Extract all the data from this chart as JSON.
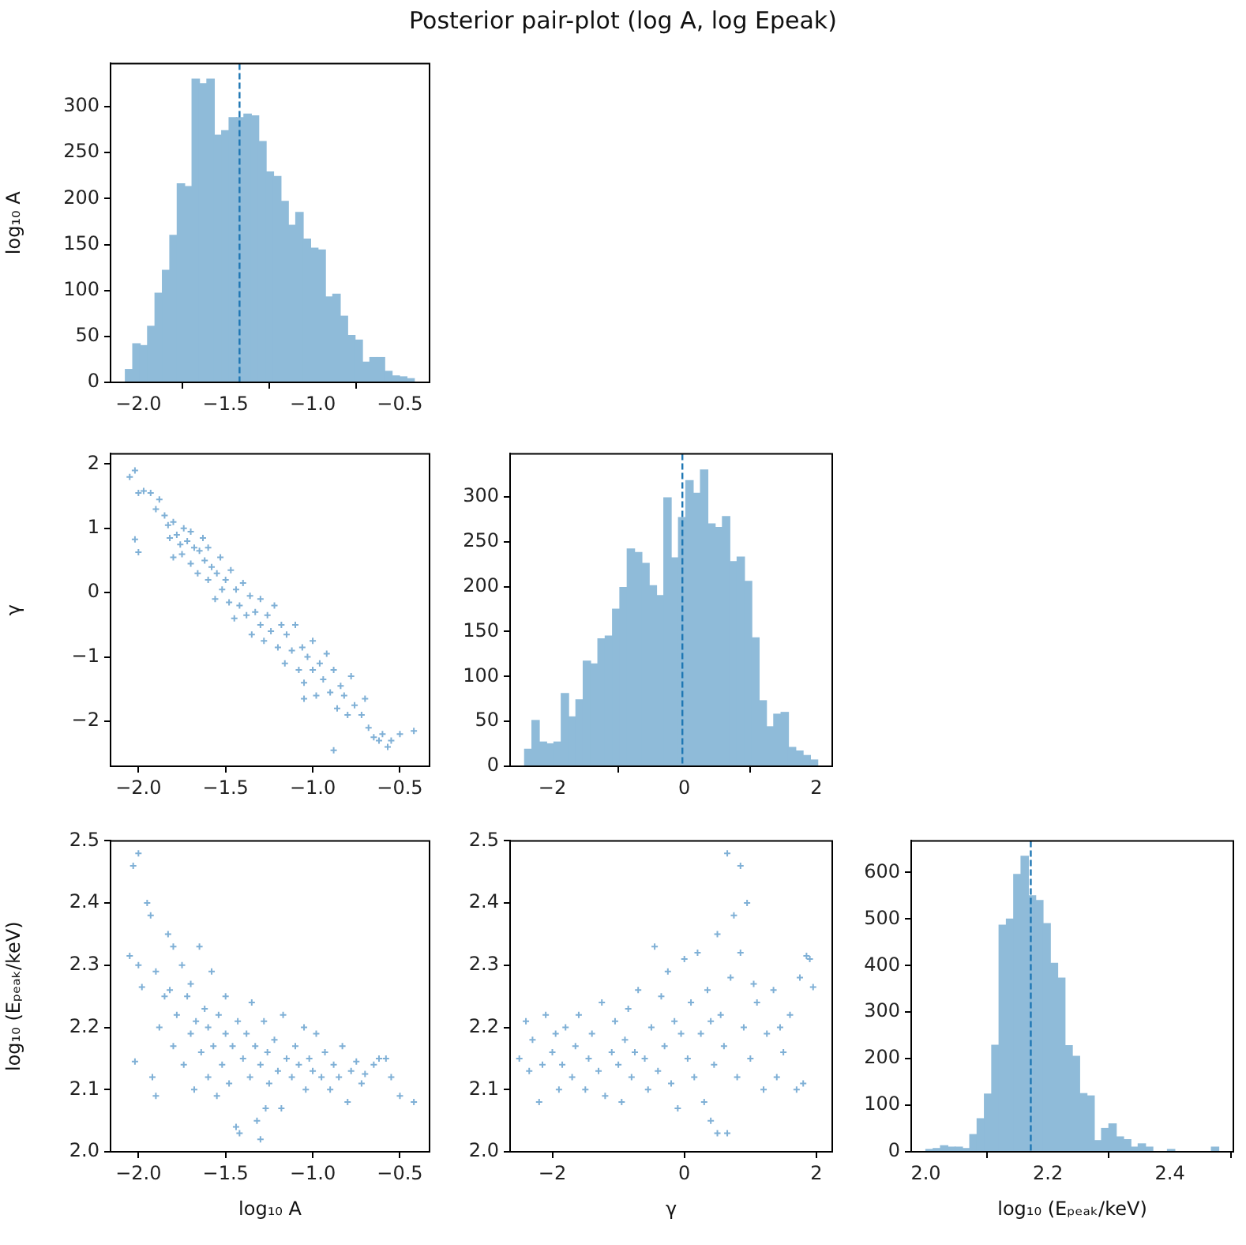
{
  "chart_data": [
    {
      "type": "histogram",
      "title": "Posterior pair-plot (log A, log Epeak)",
      "ylabel": "log₁₀ A",
      "bins": [
        -2.075,
        -2.0325,
        -1.99,
        -1.9475,
        -1.905,
        -1.8625,
        -1.82,
        -1.7775,
        -1.735,
        -1.6925,
        -1.65,
        -1.6075,
        -1.565,
        -1.5225,
        -1.48,
        -1.4375,
        -1.395,
        -1.3525,
        -1.31,
        -1.2675,
        -1.225,
        -1.1825,
        -1.14,
        -1.0975,
        -1.055,
        -1.0125,
        -0.97,
        -0.9275,
        -0.885,
        -0.8425,
        -0.8,
        -0.7575,
        -0.715,
        -0.6725,
        -0.63,
        -0.5875,
        -0.545,
        -0.5025,
        -0.46,
        -0.4175
      ],
      "values": [
        14,
        42,
        40,
        61,
        97,
        122,
        160,
        216,
        213,
        330,
        325,
        330,
        269,
        274,
        288,
        288,
        292,
        290,
        262,
        229,
        224,
        197,
        171,
        185,
        156,
        146,
        144,
        93,
        96,
        72,
        51,
        46,
        22,
        27,
        27,
        12,
        7,
        6,
        4
      ],
      "color": "#8fbbd9",
      "xlim": [
        -2.16,
        -0.33
      ],
      "xticks": [
        {
          "value": -2,
          "label": "−2.0"
        },
        {
          "value": -1.5,
          "label": "−1.5"
        },
        {
          "value": -1,
          "label": "−1.0"
        },
        {
          "value": -0.5,
          "label": "−0.5"
        }
      ],
      "ylim": [
        0,
        347
      ],
      "yticks": [
        0,
        50,
        100,
        150,
        200,
        250,
        300
      ],
      "ref_lines": [
        {
          "axis": "x",
          "value": -1.42,
          "color": "#1f77b4",
          "line_style": "dashed"
        }
      ]
    },
    {
      "type": "scatter",
      "ylabel": "γ",
      "marker": "cross",
      "color": "#7fb0d6",
      "x": [
        -2.05,
        -2.02,
        -2.0,
        -2.02,
        -2.0,
        -1.97,
        -1.93,
        -1.9,
        -1.88,
        -1.85,
        -1.83,
        -1.82,
        -1.8,
        -1.8,
        -1.78,
        -1.76,
        -1.75,
        -1.74,
        -1.72,
        -1.7,
        -1.7,
        -1.68,
        -1.66,
        -1.65,
        -1.63,
        -1.62,
        -1.6,
        -1.6,
        -1.58,
        -1.56,
        -1.55,
        -1.53,
        -1.52,
        -1.5,
        -1.48,
        -1.47,
        -1.45,
        -1.44,
        -1.42,
        -1.4,
        -1.38,
        -1.36,
        -1.35,
        -1.33,
        -1.3,
        -1.3,
        -1.28,
        -1.26,
        -1.24,
        -1.22,
        -1.2,
        -1.18,
        -1.16,
        -1.15,
        -1.12,
        -1.1,
        -1.08,
        -1.06,
        -1.05,
        -1.03,
        -1.0,
        -1.0,
        -0.98,
        -0.96,
        -0.94,
        -0.92,
        -0.9,
        -0.88,
        -0.86,
        -0.84,
        -0.82,
        -0.8,
        -0.78,
        -0.76,
        -0.72,
        -0.7,
        -0.68,
        -0.65,
        -0.62,
        -0.6,
        -0.57,
        -0.55,
        -0.5,
        -0.42,
        -0.88,
        -1.05
      ],
      "values": [
        1.8,
        1.9,
        1.55,
        0.83,
        0.63,
        1.58,
        1.55,
        1.3,
        1.45,
        1.2,
        1.05,
        0.85,
        1.1,
        0.55,
        0.9,
        0.75,
        0.6,
        1.0,
        0.8,
        0.45,
        0.95,
        0.7,
        0.3,
        0.65,
        0.85,
        0.5,
        0.2,
        0.7,
        0.4,
        -0.1,
        0.3,
        0.55,
        0.05,
        0.2,
        -0.15,
        0.35,
        -0.4,
        0.05,
        -0.2,
        0.15,
        -0.35,
        -0.05,
        -0.65,
        -0.3,
        -0.1,
        -0.5,
        -0.75,
        -0.35,
        -0.6,
        -0.2,
        -0.85,
        -0.5,
        -1.1,
        -0.65,
        -0.9,
        -0.5,
        -1.2,
        -0.85,
        -1.4,
        -1.0,
        -1.2,
        -0.75,
        -1.6,
        -1.1,
        -1.35,
        -0.95,
        -1.55,
        -1.2,
        -1.8,
        -1.45,
        -1.6,
        -1.9,
        -1.3,
        -1.75,
        -1.9,
        -1.65,
        -2.1,
        -2.25,
        -2.3,
        -2.2,
        -2.4,
        -2.3,
        -2.2,
        -2.15,
        -2.45,
        -1.65
      ],
      "xlim": [
        -2.16,
        -0.33
      ],
      "xticks": [
        {
          "value": -2,
          "label": "−2.0"
        },
        {
          "value": -1.5,
          "label": "−1.5"
        },
        {
          "value": -1,
          "label": "−1.0"
        },
        {
          "value": -0.5,
          "label": "−0.5"
        }
      ],
      "ylim": [
        -2.7,
        2.16
      ],
      "yticks": [
        {
          "value": -2,
          "label": "−2"
        },
        {
          "value": -1,
          "label": "−1"
        },
        0,
        1,
        2
      ]
    },
    {
      "type": "histogram",
      "bins": [
        -2.42,
        -2.309,
        -2.198,
        -2.087,
        -1.976,
        -1.865,
        -1.754,
        -1.643,
        -1.532,
        -1.421,
        -1.31,
        -1.199,
        -1.088,
        -0.977,
        -0.866,
        -0.755,
        -0.644,
        -0.533,
        -0.422,
        -0.311,
        -0.2,
        -0.089,
        0.022,
        0.133,
        0.244,
        0.355,
        0.466,
        0.577,
        0.688,
        0.799,
        0.91,
        1.021,
        1.132,
        1.243,
        1.354,
        1.465,
        1.576,
        1.687,
        1.798,
        1.909,
        2.02
      ],
      "values": [
        19,
        51,
        27,
        25,
        27,
        81,
        55,
        74,
        117,
        114,
        142,
        145,
        175,
        199,
        242,
        238,
        226,
        201,
        190,
        299,
        232,
        277,
        318,
        304,
        330,
        270,
        266,
        278,
        228,
        233,
        206,
        143,
        73,
        44,
        58,
        60,
        21,
        17,
        12,
        7
      ],
      "color": "#8fbbd9",
      "xlim": [
        -2.64,
        2.24
      ],
      "xticks": [
        {
          "value": -2,
          "label": "−2"
        },
        0,
        2
      ],
      "ylim": [
        0,
        348
      ],
      "yticks": [
        0,
        50,
        100,
        150,
        200,
        250,
        300
      ],
      "ref_lines": [
        {
          "axis": "x",
          "value": -0.03,
          "color": "#1f77b4",
          "line_style": "dashed"
        }
      ]
    },
    {
      "type": "scatter",
      "xlabel": "log₁₀ A",
      "ylabel": "log₁₀ (Eₚₑₐₖ/keV)",
      "marker": "cross",
      "color": "#7fb0d6",
      "x": [
        -2.05,
        -2.03,
        -2.0,
        -2.0,
        -2.02,
        -1.98,
        -1.95,
        -1.93,
        -1.9,
        -1.92,
        -1.9,
        -1.88,
        -1.85,
        -1.83,
        -1.82,
        -1.8,
        -1.8,
        -1.78,
        -1.75,
        -1.74,
        -1.72,
        -1.7,
        -1.7,
        -1.68,
        -1.67,
        -1.65,
        -1.64,
        -1.62,
        -1.6,
        -1.6,
        -1.58,
        -1.57,
        -1.55,
        -1.54,
        -1.52,
        -1.5,
        -1.5,
        -1.48,
        -1.46,
        -1.44,
        -1.43,
        -1.42,
        -1.4,
        -1.38,
        -1.36,
        -1.35,
        -1.33,
        -1.32,
        -1.3,
        -1.3,
        -1.28,
        -1.26,
        -1.25,
        -1.22,
        -1.2,
        -1.18,
        -1.17,
        -1.15,
        -1.12,
        -1.1,
        -1.08,
        -1.05,
        -1.04,
        -1.02,
        -1.0,
        -0.98,
        -0.95,
        -0.93,
        -0.9,
        -0.88,
        -0.85,
        -0.83,
        -0.8,
        -0.78,
        -0.75,
        -0.72,
        -0.7,
        -0.65,
        -0.62,
        -0.58,
        -0.55,
        -0.5,
        -0.42,
        -1.27
      ],
      "values": [
        2.315,
        2.46,
        2.48,
        2.3,
        2.145,
        2.265,
        2.4,
        2.38,
        2.29,
        2.12,
        2.09,
        2.2,
        2.25,
        2.35,
        2.26,
        2.17,
        2.33,
        2.22,
        2.3,
        2.14,
        2.25,
        2.19,
        2.27,
        2.1,
        2.21,
        2.33,
        2.16,
        2.23,
        2.12,
        2.2,
        2.29,
        2.17,
        2.09,
        2.22,
        2.14,
        2.19,
        2.25,
        2.11,
        2.17,
        2.04,
        2.21,
        2.03,
        2.15,
        2.19,
        2.12,
        2.24,
        2.17,
        2.05,
        2.02,
        2.14,
        2.21,
        2.16,
        2.11,
        2.18,
        2.13,
        2.07,
        2.22,
        2.15,
        2.12,
        2.17,
        2.14,
        2.2,
        2.1,
        2.15,
        2.13,
        2.19,
        2.12,
        2.16,
        2.1,
        2.14,
        2.12,
        2.17,
        2.08,
        2.13,
        2.145,
        2.11,
        2.125,
        2.14,
        2.15,
        2.15,
        2.12,
        2.09,
        2.08,
        2.07
      ],
      "xlim": [
        -2.16,
        -0.33
      ],
      "xticks": [
        {
          "value": -2,
          "label": "−2.0"
        },
        {
          "value": -1.5,
          "label": "−1.5"
        },
        {
          "value": -1,
          "label": "−1.0"
        },
        {
          "value": -0.5,
          "label": "−0.5"
        }
      ],
      "ylim": [
        2.0,
        2.5
      ],
      "yticks": [
        {
          "value": 2,
          "label": "2.0"
        },
        2.1,
        2.2,
        2.3,
        2.4,
        2.5
      ]
    },
    {
      "type": "scatter",
      "xlabel": "γ",
      "marker": "cross",
      "color": "#7fb0d6",
      "x": [
        -2.5,
        -2.4,
        -2.35,
        -2.3,
        -2.2,
        -2.15,
        -2.1,
        -2.0,
        -1.95,
        -1.9,
        -1.85,
        -1.8,
        -1.7,
        -1.65,
        -1.6,
        -1.5,
        -1.45,
        -1.4,
        -1.3,
        -1.25,
        -1.2,
        -1.1,
        -1.05,
        -1.0,
        -0.95,
        -0.9,
        -0.85,
        -0.8,
        -0.75,
        -0.7,
        -0.6,
        -0.55,
        -0.5,
        -0.45,
        -0.4,
        -0.35,
        -0.3,
        -0.25,
        -0.2,
        -0.15,
        -0.1,
        -0.05,
        0.0,
        0.05,
        0.1,
        0.15,
        0.2,
        0.25,
        0.3,
        0.35,
        0.4,
        0.4,
        0.45,
        0.5,
        0.5,
        0.55,
        0.6,
        0.65,
        0.65,
        0.7,
        0.75,
        0.8,
        0.85,
        0.85,
        0.9,
        0.95,
        1.0,
        1.05,
        1.1,
        1.2,
        1.25,
        1.35,
        1.4,
        1.5,
        1.6,
        1.7,
        1.75,
        1.8,
        1.85,
        1.9,
        1.95,
        1.45
      ],
      "values": [
        2.15,
        2.21,
        2.13,
        2.18,
        2.08,
        2.14,
        2.22,
        2.16,
        2.19,
        2.1,
        2.14,
        2.2,
        2.12,
        2.17,
        2.22,
        2.1,
        2.15,
        2.19,
        2.13,
        2.24,
        2.09,
        2.16,
        2.21,
        2.14,
        2.08,
        2.18,
        2.23,
        2.12,
        2.16,
        2.26,
        2.15,
        2.1,
        2.2,
        2.33,
        2.13,
        2.25,
        2.17,
        2.29,
        2.11,
        2.21,
        2.07,
        2.19,
        2.31,
        2.15,
        2.24,
        2.12,
        2.32,
        2.19,
        2.08,
        2.26,
        2.05,
        2.21,
        2.14,
        2.35,
        2.03,
        2.22,
        2.17,
        2.48,
        2.03,
        2.28,
        2.38,
        2.12,
        2.46,
        2.32,
        2.2,
        2.4,
        2.15,
        2.27,
        2.24,
        2.1,
        2.19,
        2.26,
        2.12,
        2.16,
        2.22,
        2.1,
        2.28,
        2.11,
        2.315,
        2.31,
        2.265,
        2.2
      ],
      "xlim": [
        -2.64,
        2.24
      ],
      "xticks": [
        {
          "value": -2,
          "label": "−2"
        },
        0,
        2
      ],
      "ylim": [
        2.0,
        2.5
      ],
      "yticks": [
        {
          "value": 2,
          "label": "2.0"
        },
        2.1,
        2.2,
        2.3,
        2.4,
        2.5
      ]
    },
    {
      "type": "histogram",
      "xlabel": "log₁₀ (Eₚₑₐₖ/keV)",
      "bins": [
        2.0,
        2.012,
        2.024,
        2.036,
        2.048,
        2.06,
        2.072,
        2.084,
        2.096,
        2.108,
        2.12,
        2.132,
        2.144,
        2.156,
        2.168,
        2.18,
        2.192,
        2.204,
        2.216,
        2.228,
        2.24,
        2.252,
        2.264,
        2.276,
        2.288,
        2.3,
        2.312,
        2.324,
        2.336,
        2.348,
        2.36,
        2.372,
        2.384,
        2.396,
        2.408,
        2.42,
        2.432,
        2.444,
        2.456,
        2.468,
        2.48
      ],
      "values": [
        5,
        7,
        13,
        10,
        10,
        7,
        37,
        71,
        124,
        229,
        487,
        500,
        596,
        635,
        550,
        540,
        490,
        405,
        373,
        228,
        205,
        125,
        120,
        24,
        50,
        60,
        32,
        26,
        10,
        17,
        10,
        0,
        0,
        5,
        0,
        0,
        0,
        0,
        0,
        10
      ],
      "color": "#8fbbd9",
      "xlim": [
        1.976,
        2.504
      ],
      "xticks": [
        {
          "value": 2,
          "label": "2.0"
        },
        2.2,
        2.4
      ],
      "ylim": [
        0,
        668
      ],
      "yticks": [
        0,
        100,
        200,
        300,
        400,
        500,
        600
      ],
      "ref_lines": [
        {
          "axis": "x",
          "value": 2.172,
          "color": "#1f77b4",
          "line_style": "dashed"
        }
      ]
    }
  ]
}
